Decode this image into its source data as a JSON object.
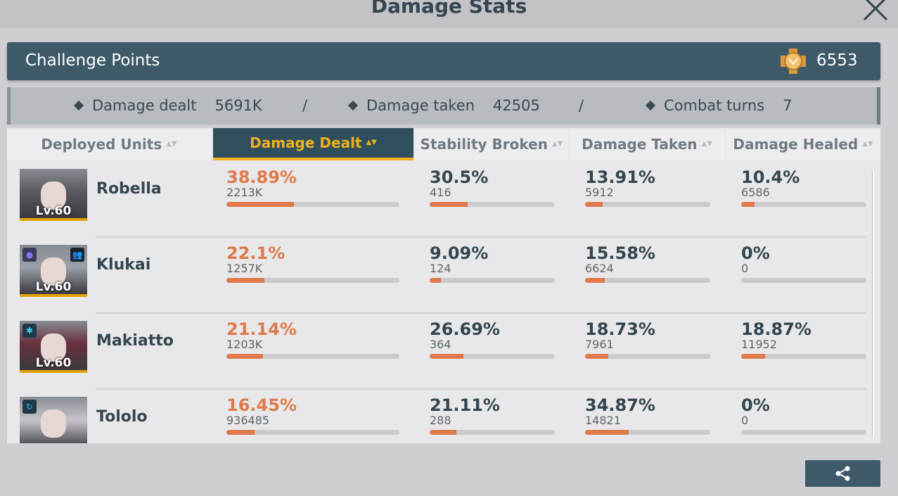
{
  "title": "Damage Stats",
  "challenge": {
    "label": "Challenge Points",
    "value": "6553"
  },
  "summary": [
    {
      "label": "Damage dealt",
      "value": "5691K"
    },
    {
      "label": "Damage taken",
      "value": "42505"
    },
    {
      "label": "Combat turns",
      "value": "7"
    }
  ],
  "separator": "/",
  "columns": [
    "Deployed Units",
    "Damage Dealt",
    "Stability Broken",
    "Damage Taken",
    "Damage Healed"
  ],
  "active_column": 1,
  "colors": {
    "accent": "#f0b01e",
    "header": "#3e5a68",
    "bar_fill": "#e07a4a"
  },
  "units": [
    {
      "name": "Robella",
      "level": "Lv.60",
      "badges": [],
      "stats": [
        {
          "pct": "38.89%",
          "raw": "2213K",
          "fill": 38.89
        },
        {
          "pct": "30.5%",
          "raw": "416",
          "fill": 30.5
        },
        {
          "pct": "13.91%",
          "raw": "5912",
          "fill": 13.91
        },
        {
          "pct": "10.4%",
          "raw": "6586",
          "fill": 10.4
        }
      ]
    },
    {
      "name": "Klukai",
      "level": "Lv.60",
      "badges": [
        "purple-orbs-icon",
        "support-group-icon"
      ],
      "stats": [
        {
          "pct": "22.1%",
          "raw": "1257K",
          "fill": 22.1
        },
        {
          "pct": "9.09%",
          "raw": "124",
          "fill": 9.09
        },
        {
          "pct": "15.58%",
          "raw": "6624",
          "fill": 15.58
        },
        {
          "pct": "0%",
          "raw": "0",
          "fill": 0
        }
      ]
    },
    {
      "name": "Makiatto",
      "level": "Lv.60",
      "badges": [
        "snowflake-icon"
      ],
      "stats": [
        {
          "pct": "21.14%",
          "raw": "1203K",
          "fill": 21.14
        },
        {
          "pct": "26.69%",
          "raw": "364",
          "fill": 26.69
        },
        {
          "pct": "18.73%",
          "raw": "7961",
          "fill": 18.73
        },
        {
          "pct": "18.87%",
          "raw": "11952",
          "fill": 18.87
        }
      ]
    },
    {
      "name": "Tololo",
      "level": "",
      "badges": [
        "cycle-icon"
      ],
      "stats": [
        {
          "pct": "16.45%",
          "raw": "936485",
          "fill": 16.45
        },
        {
          "pct": "21.11%",
          "raw": "288",
          "fill": 21.11
        },
        {
          "pct": "34.87%",
          "raw": "14821",
          "fill": 34.87
        },
        {
          "pct": "0%",
          "raw": "0",
          "fill": 0
        }
      ]
    }
  ]
}
